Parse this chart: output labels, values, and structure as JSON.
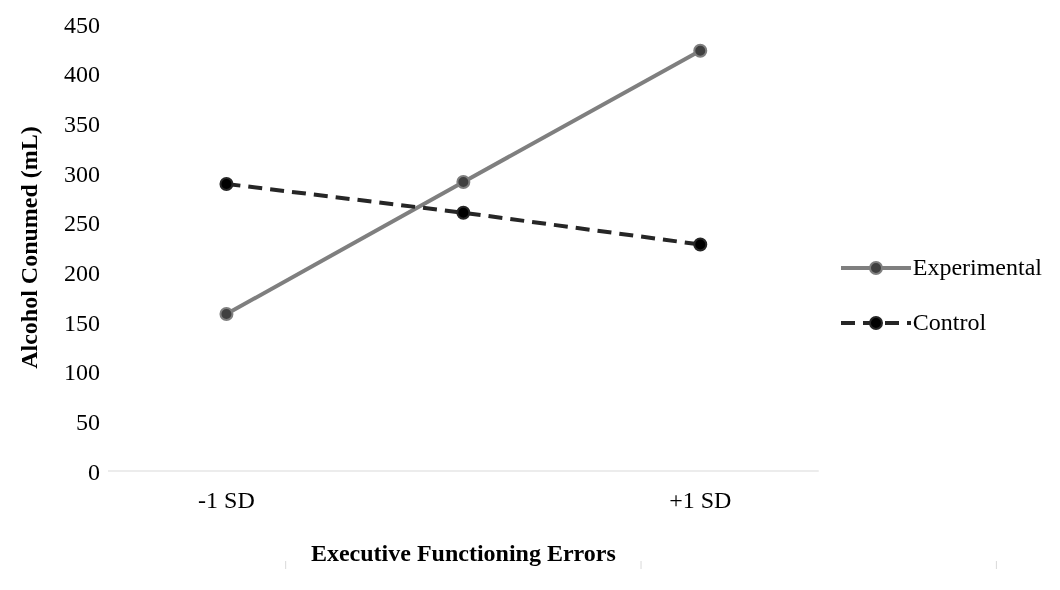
{
  "chart_data": {
    "type": "line",
    "xlabel": "Executive Functioning Errors",
    "ylabel": "Alcohol Conumed (mL)",
    "categories": [
      "-1 SD",
      null,
      "+1 SD"
    ],
    "series": [
      {
        "name": "Experimental",
        "color": "#7f7f7f",
        "values": [
          158,
          291,
          423
        ],
        "line_style": "solid"
      },
      {
        "name": "Control",
        "color": "#262626",
        "values": [
          289,
          260,
          228
        ],
        "line_style": "dashed"
      }
    ],
    "ylim": [
      0,
      450
    ],
    "yticks": [
      0,
      50,
      100,
      150,
      200,
      250,
      300,
      350,
      400,
      450
    ],
    "grid": false,
    "legend": "right",
    "marker": "circle"
  }
}
